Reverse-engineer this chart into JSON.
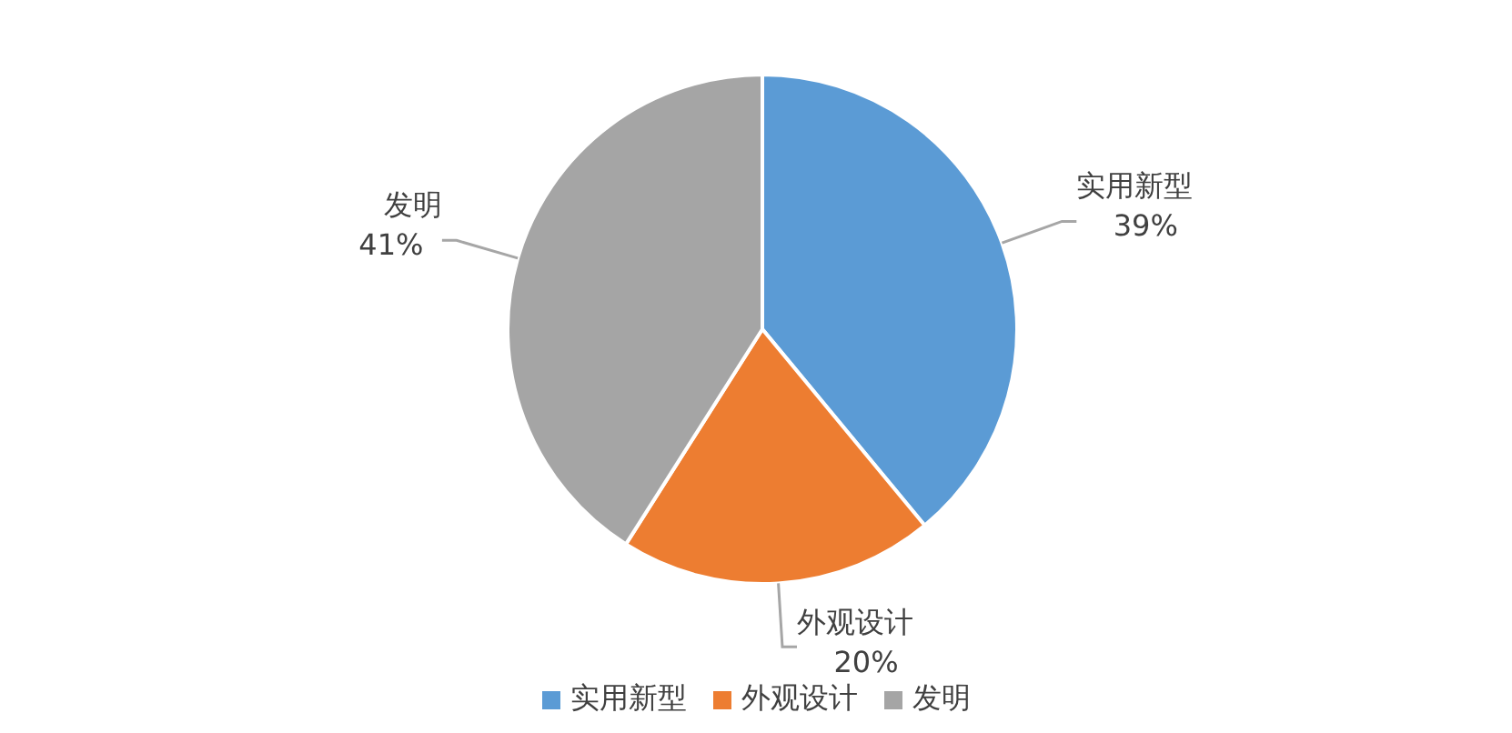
{
  "chart_data": {
    "type": "pie",
    "categories": [
      "实用新型",
      "外观设计",
      "发明"
    ],
    "values": [
      39,
      20,
      41
    ],
    "colors": [
      "#5b9bd5",
      "#ed7d31",
      "#a5a5a5"
    ],
    "value_labels": [
      "39%",
      "20%",
      "41%"
    ],
    "legend": "bottom"
  }
}
